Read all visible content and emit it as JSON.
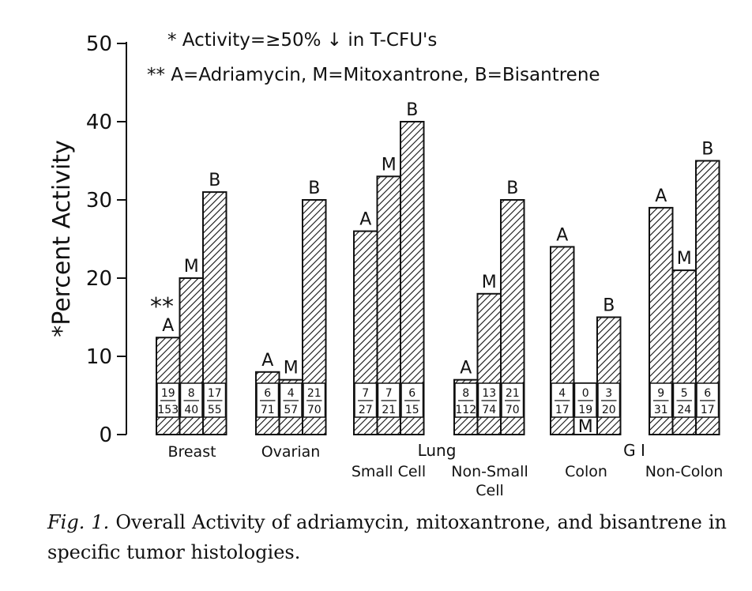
{
  "chart_data": {
    "type": "bar",
    "ylabel": "*Percent Activity",
    "ylim": [
      0,
      50
    ],
    "yticks": [
      0,
      10,
      20,
      30,
      40,
      50
    ],
    "notes": [
      "* Activity=≥50% ↓ in T-CFU's",
      "** A=Adriamycin, M=Mitoxantrone, B=Bisantrene"
    ],
    "annotation_marker": "**",
    "series": [
      {
        "name": "Adriamycin",
        "label": "A"
      },
      {
        "name": "Mitoxantrone",
        "label": "M"
      },
      {
        "name": "Bisantrene",
        "label": "B"
      }
    ],
    "groups": [
      {
        "name": "Breast",
        "sub": "",
        "bars": [
          {
            "drug": "A",
            "value": 12.4,
            "num": "19",
            "den": "153"
          },
          {
            "drug": "M",
            "value": 20,
            "num": "8",
            "den": "40"
          },
          {
            "drug": "B",
            "value": 31,
            "num": "17",
            "den": "55"
          }
        ]
      },
      {
        "name": "Ovarian",
        "sub": "",
        "bars": [
          {
            "drug": "A",
            "value": 8,
            "num": "6",
            "den": "71"
          },
          {
            "drug": "M",
            "value": 7,
            "num": "4",
            "den": "57"
          },
          {
            "drug": "B",
            "value": 30,
            "num": "21",
            "den": "70"
          }
        ]
      },
      {
        "name": "Small Cell",
        "sub": "",
        "bars": [
          {
            "drug": "A",
            "value": 26,
            "num": "7",
            "den": "27"
          },
          {
            "drug": "M",
            "value": 33,
            "num": "7",
            "den": "21"
          },
          {
            "drug": "B",
            "value": 40,
            "num": "6",
            "den": "15"
          }
        ]
      },
      {
        "name": "Non-Small",
        "sub": "Cell",
        "bars": [
          {
            "drug": "A",
            "value": 7,
            "num": "8",
            "den": "112"
          },
          {
            "drug": "M",
            "value": 18,
            "num": "13",
            "den": "74"
          },
          {
            "drug": "B",
            "value": 30,
            "num": "21",
            "den": "70"
          }
        ]
      },
      {
        "name": "Colon",
        "sub": "",
        "bars": [
          {
            "drug": "A",
            "value": 24,
            "num": "4",
            "den": "17"
          },
          {
            "drug": "M",
            "value": 0,
            "num": "0",
            "den": "19"
          },
          {
            "drug": "B",
            "value": 15,
            "num": "3",
            "den": "20"
          }
        ]
      },
      {
        "name": "Non-Colon",
        "sub": "",
        "bars": [
          {
            "drug": "A",
            "value": 29,
            "num": "9",
            "den": "31"
          },
          {
            "drug": "M",
            "value": 21,
            "num": "5",
            "den": "24"
          },
          {
            "drug": "B",
            "value": 35,
            "num": "6",
            "den": "17"
          }
        ]
      }
    ],
    "category_headers": [
      {
        "label": "Lung",
        "spans": [
          "Small Cell",
          "Non-Small"
        ]
      },
      {
        "label": "G I",
        "spans": [
          "Colon",
          "Non-Colon"
        ]
      }
    ]
  },
  "caption": {
    "fig": "Fig. 1.",
    "text": "Overall Activity of adriamycin, mitoxantrone, and bisantrene in specific tumor histologies."
  }
}
